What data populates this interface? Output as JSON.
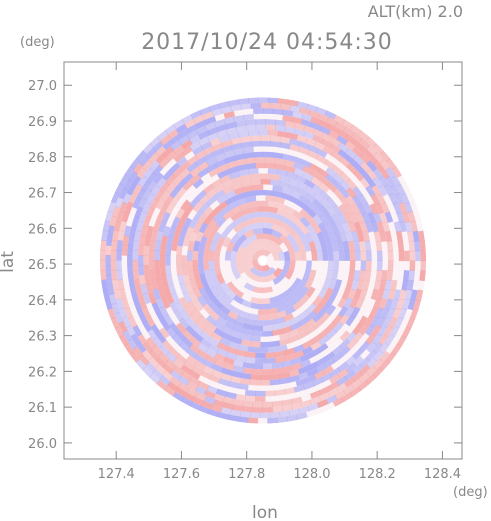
{
  "header": {
    "altitude_label": "ALT(km)  2.0",
    "timestamp": "2017/10/24 04:54:30"
  },
  "chart_data": {
    "type": "heatmap",
    "title": "2017/10/24 04:54:30",
    "xlabel": "lon",
    "ylabel": "lat",
    "x_unit": "(deg)",
    "y_unit": "(deg)",
    "xlim": [
      127.24,
      128.46
    ],
    "ylim": [
      25.955,
      27.065
    ],
    "x_ticks": [
      "127.4",
      "127.6",
      "127.8",
      "128.0",
      "128.2",
      "128.4"
    ],
    "x_tick_values": [
      127.4,
      127.6,
      127.8,
      128.0,
      128.2,
      128.4
    ],
    "y_ticks": [
      "26.0",
      "26.1",
      "26.2",
      "26.3",
      "26.4",
      "26.5",
      "26.6",
      "26.7",
      "26.8",
      "26.9",
      "27.0"
    ],
    "y_tick_values": [
      26.0,
      26.1,
      26.2,
      26.3,
      26.4,
      26.5,
      26.6,
      26.7,
      26.8,
      26.9,
      27.0
    ],
    "radar_center": [
      127.85,
      26.51
    ],
    "radar_range_deg": 0.5,
    "colors": {
      "positive": "#f4a3a3",
      "negative": "#a9a9f5",
      "axis": "#888888"
    },
    "grid": false
  }
}
